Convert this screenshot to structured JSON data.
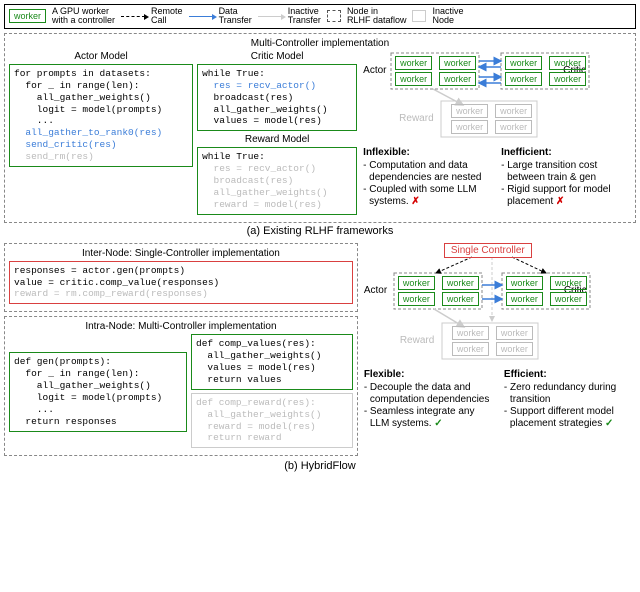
{
  "legend": {
    "worker": "worker",
    "worker_desc": "A GPU worker\nwith a controller",
    "remote_call": "Remote\nCall",
    "data_transfer": "Data\nTransfer",
    "inactive_transfer": "Inactive\nTransfer",
    "node_in_dataflow": "Node in\nRLHF dataflow",
    "inactive_node": "Inactive\nNode"
  },
  "panel_a": {
    "title": "Multi-Controller implementation",
    "actor_title": "Actor Model",
    "critic_title": "Critic Model",
    "reward_title": "Reward Model",
    "caption": "(a) Existing RLHF frameworks",
    "actor_code": [
      {
        "t": "for prompts in datasets:",
        "c": "c-black"
      },
      {
        "t": "  for _ in range(len):",
        "c": "c-black"
      },
      {
        "t": "    all_gather_weights()",
        "c": "c-black"
      },
      {
        "t": "    logit = model(prompts)",
        "c": "c-black"
      },
      {
        "t": "    ...",
        "c": "c-black"
      },
      {
        "t": "  all_gather_to_rank0(res)",
        "c": "c-blue"
      },
      {
        "t": "  send_critic(res)",
        "c": "c-blue"
      },
      {
        "t": "  send_rm(res)",
        "c": "c-gray"
      }
    ],
    "critic_code": [
      {
        "t": "while True:",
        "c": "c-black"
      },
      {
        "t": "  res = recv_actor()",
        "c": "c-blue"
      },
      {
        "t": "  broadcast(res)",
        "c": "c-black"
      },
      {
        "t": "  all_gather_weights()",
        "c": "c-black"
      },
      {
        "t": "  values = model(res)",
        "c": "c-black"
      }
    ],
    "reward_code": [
      {
        "t": "while True:",
        "c": "c-black"
      },
      {
        "t": "  res = recv_actor()",
        "c": "c-gray"
      },
      {
        "t": "  broadcast(res)",
        "c": "c-gray"
      },
      {
        "t": "  all_gather_weights()",
        "c": "c-gray"
      },
      {
        "t": "  reward = model(res)",
        "c": "c-gray"
      }
    ],
    "labels": {
      "actor": "Actor",
      "critic": "Critic",
      "reward": "Reward"
    },
    "inflexible": {
      "title": "Inflexible:",
      "items": [
        "- Computation and data dependencies are nested",
        "- Coupled with some LLM systems."
      ]
    },
    "inefficient": {
      "title": "Inefficient:",
      "items": [
        "- Large transition cost between train & gen",
        "- Rigid support for model placement"
      ]
    }
  },
  "panel_b": {
    "inter_title": "Inter-Node: Single-Controller implementation",
    "intra_title": "Intra-Node: Multi-Controller implementation",
    "caption": "(b) HybridFlow",
    "single_ctrl": "Single Controller",
    "inter_code": [
      {
        "t": "responses = actor.gen(prompts)",
        "c": "c-black"
      },
      {
        "t": "value = critic.comp_value(responses)",
        "c": "c-black"
      },
      {
        "t": "reward = rm.comp_reward(responses)",
        "c": "c-gray"
      }
    ],
    "gen_code": [
      {
        "t": "def gen(prompts):",
        "c": "c-black"
      },
      {
        "t": "  for _ in range(len):",
        "c": "c-black"
      },
      {
        "t": "    all_gather_weights()",
        "c": "c-black"
      },
      {
        "t": "    logit = model(prompts)",
        "c": "c-black"
      },
      {
        "t": "    ...",
        "c": "c-black"
      },
      {
        "t": "  return responses",
        "c": "c-black"
      }
    ],
    "comp_values_code": [
      {
        "t": "def comp_values(res):",
        "c": "c-black"
      },
      {
        "t": "  all_gather_weights()",
        "c": "c-black"
      },
      {
        "t": "  values = model(res)",
        "c": "c-black"
      },
      {
        "t": "  return values",
        "c": "c-black"
      }
    ],
    "comp_reward_code": [
      {
        "t": "def comp_reward(res):",
        "c": "c-gray"
      },
      {
        "t": "  all_gather_weights()",
        "c": "c-gray"
      },
      {
        "t": "  reward = model(res)",
        "c": "c-gray"
      },
      {
        "t": "  return reward",
        "c": "c-gray"
      }
    ],
    "labels": {
      "actor": "Actor",
      "critic": "Critic",
      "reward": "Reward"
    },
    "flexible": {
      "title": "Flexible:",
      "items": [
        "- Decouple the data and computation dependencies",
        "- Seamless integrate any LLM systems."
      ]
    },
    "efficient": {
      "title": "Efficient:",
      "items": [
        "- Zero redundancy during transition",
        "- Support different model placement strategies"
      ]
    }
  },
  "colors": {
    "green": "#1a8a1a",
    "red": "#d94040",
    "blue": "#3b7dd8",
    "gray": "#bbbbbb",
    "cross": "#d40000"
  }
}
